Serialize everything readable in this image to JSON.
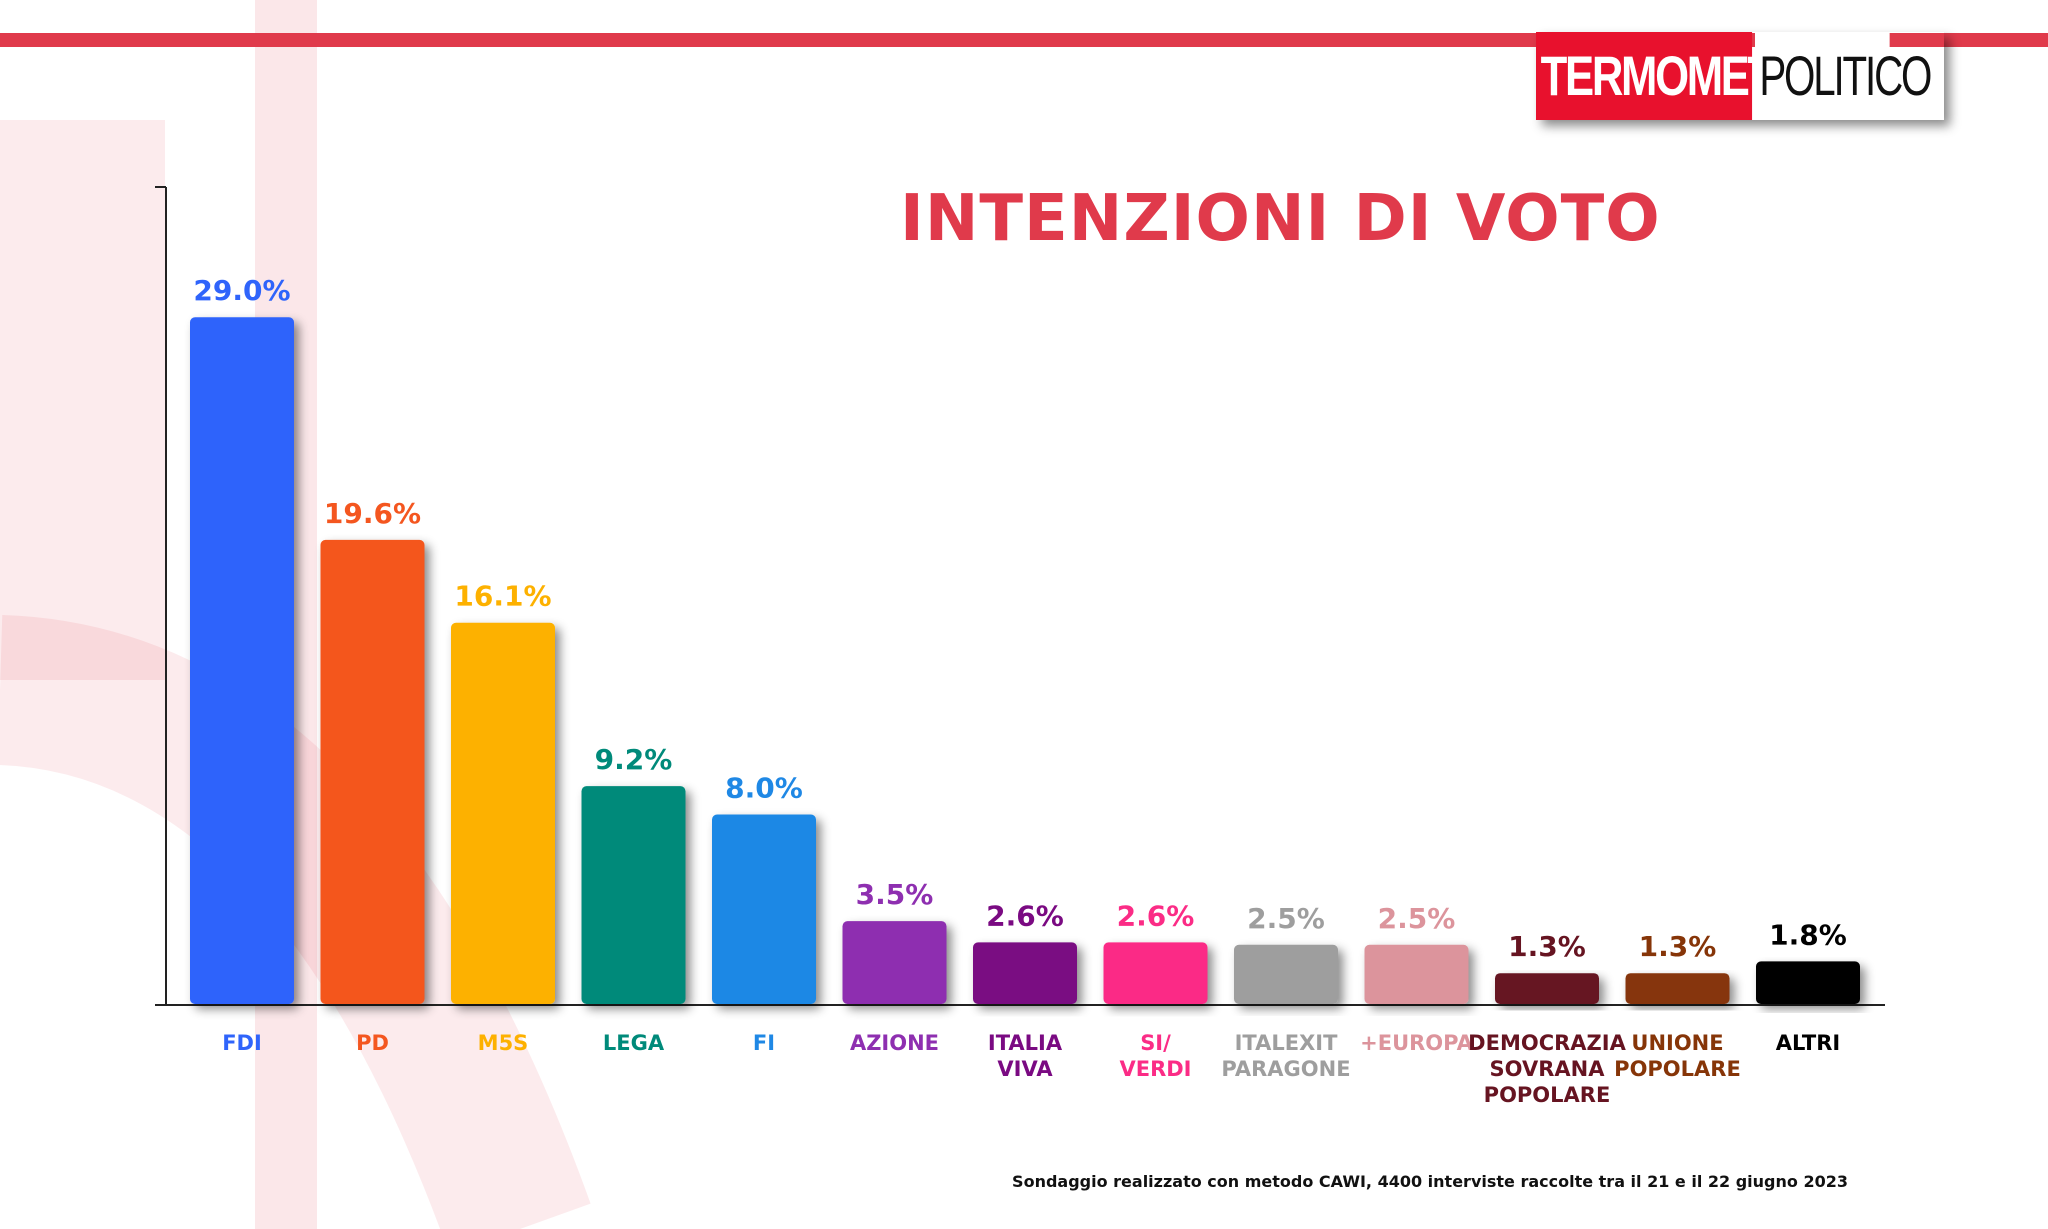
{
  "logo": {
    "part1": "TERMOMETRO",
    "part2": "POLITICO"
  },
  "footnote": "Sondaggio realizzato con metodo CAWI, 4400 interviste raccolte tra il 21 e il 22 giugno 2023",
  "chart_data": {
    "type": "bar",
    "title": "INTENZIONI DI VOTO",
    "xlabel": "",
    "ylabel": "",
    "ylim": [
      0,
      34.5
    ],
    "grid": false,
    "legend": "none",
    "categories": [
      [
        "FDI"
      ],
      [
        "PD"
      ],
      [
        "M5S"
      ],
      [
        "LEGA"
      ],
      [
        "FI"
      ],
      [
        "AZIONE"
      ],
      [
        "ITALIA",
        "VIVA"
      ],
      [
        "SI/",
        "VERDI"
      ],
      [
        "ITALEXIT",
        "PARAGONE"
      ],
      [
        "+EUROPA"
      ],
      [
        "DEMOCRAZIA",
        "SOVRANA",
        "POPOLARE"
      ],
      [
        "UNIONE",
        "POPOLARE"
      ],
      [
        "ALTRI"
      ]
    ],
    "values": [
      29.0,
      19.6,
      16.1,
      9.2,
      8.0,
      3.5,
      2.6,
      2.6,
      2.5,
      2.5,
      1.3,
      1.3,
      1.8
    ],
    "data_labels": [
      "29.0%",
      "19.6%",
      "16.1%",
      "9.2%",
      "8.0%",
      "3.5%",
      "2.6%",
      "2.6%",
      "2.5%",
      "2.5%",
      "1.3%",
      "1.3%",
      "1.8%"
    ],
    "colors": [
      "#2f64fb",
      "#f4561f",
      "#fdb100",
      "#008a7a",
      "#1f88e5",
      "#8e2fb0",
      "#7a0a82",
      "#fb2c86",
      "#9e9e9e",
      "#dc949c",
      "#661421",
      "#863508",
      "#000000"
    ]
  }
}
